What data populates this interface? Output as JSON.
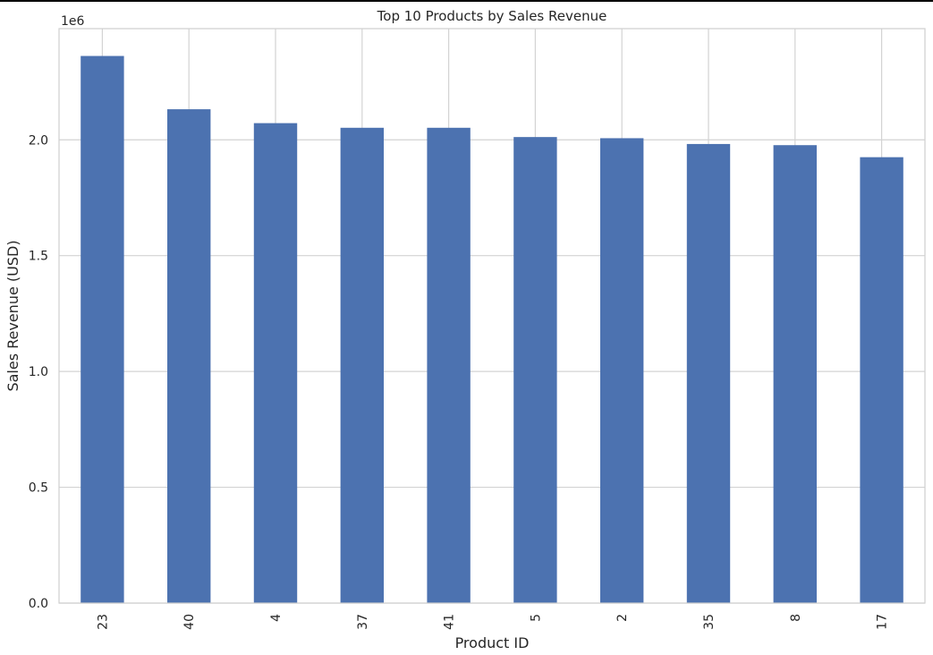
{
  "chart_data": {
    "type": "bar",
    "title": "Top 10 Products by Sales Revenue",
    "xlabel": "Product ID",
    "ylabel": "Sales Revenue (USD)",
    "y_offset_label": "1e6",
    "categories": [
      "23",
      "40",
      "4",
      "37",
      "41",
      "5",
      "2",
      "35",
      "8",
      "17"
    ],
    "values": [
      2362000,
      2132000,
      2072000,
      2052000,
      2052000,
      2012000,
      2007000,
      1982000,
      1977000,
      1925000
    ],
    "ylim": [
      0,
      2480000
    ],
    "yticks": [
      0,
      500000,
      1000000,
      1500000,
      2000000
    ],
    "ytick_labels": [
      "0.0",
      "0.5",
      "1.0",
      "1.5",
      "2.0"
    ],
    "grid": true,
    "bar_color": "#4c72b0",
    "x_tick_rotation": "vertical"
  }
}
